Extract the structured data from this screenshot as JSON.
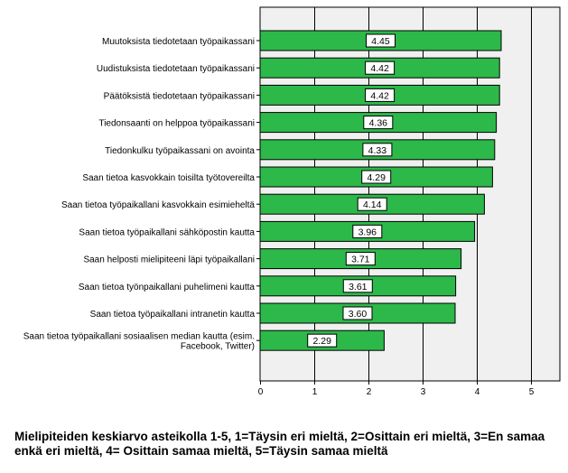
{
  "chart_data": {
    "type": "bar",
    "orientation": "horizontal",
    "categories": [
      "Muutoksista tiedotetaan työpaikassani",
      "Uudistuksista tiedotetaan työpaikassani",
      "Päätöksistä tiedotetaan työpaikassani",
      "Tiedonsaanti on helppoa työpaikassani",
      "Tiedonkulku työpaikassani on avointa",
      "Saan tietoa kasvokkain toisilta työtovereilta",
      "Saan tietoa työpaikallani kasvokkain esimieheltä",
      "Saan tietoa työpaikallani sähköpostin kautta",
      "Saan helposti mielipiteeni läpi työpaikallani",
      "Saan tietoa työnpaikallani puhelimeni kautta",
      "Saan tietoa työpaikallani intranetin kautta",
      "Saan tietoa työpaikallani sosiaalisen median kautta (esim. Facebook, Twitter)"
    ],
    "category_lines": [
      [
        "Muutoksista tiedotetaan työpaikassani"
      ],
      [
        "Uudistuksista tiedotetaan työpaikassani"
      ],
      [
        "Päätöksistä tiedotetaan työpaikassani"
      ],
      [
        "Tiedonsaanti on helppoa työpaikassani"
      ],
      [
        "Tiedonkulku työpaikassani on avointa"
      ],
      [
        "Saan tietoa kasvokkain toisilta työtovereilta"
      ],
      [
        "Saan tietoa työpaikallani kasvokkain esimieheltä"
      ],
      [
        "Saan tietoa työpaikallani sähköpostin kautta"
      ],
      [
        "Saan helposti mielipiteeni läpi työpaikallani"
      ],
      [
        "Saan tietoa työnpaikallani puhelimeni kautta"
      ],
      [
        "Saan tietoa työpaikallani intranetin kautta"
      ],
      [
        "Saan tietoa työpaikallani sosiaalisen median kautta (esim.",
        "Facebook, Twitter)"
      ]
    ],
    "values": [
      4.45,
      4.42,
      4.42,
      4.36,
      4.33,
      4.29,
      4.14,
      3.96,
      3.71,
      3.61,
      3.6,
      2.29
    ],
    "value_labels": [
      "4.45",
      "4.42",
      "4.42",
      "4.36",
      "4.33",
      "4.29",
      "4.14",
      "3.96",
      "3.71",
      "3.61",
      "3.60",
      "2.29"
    ],
    "xlim": [
      0,
      5.6
    ],
    "xticks": [
      "0",
      "1",
      "2",
      "3",
      "4",
      "5"
    ],
    "grid": "vertical",
    "bar_color": "#2db84a",
    "plot_background": "#f0f0f0",
    "title": "",
    "xlabel": "",
    "ylabel": ""
  },
  "caption": "Mielipiteiden keskiarvo asteikolla 1-5, 1=Täysin eri mieltä, 2=Osittain eri mieltä, 3=En samaa enkä eri mieltä, 4= Osittain samaa mieltä, 5=Täysin samaa mieltä"
}
